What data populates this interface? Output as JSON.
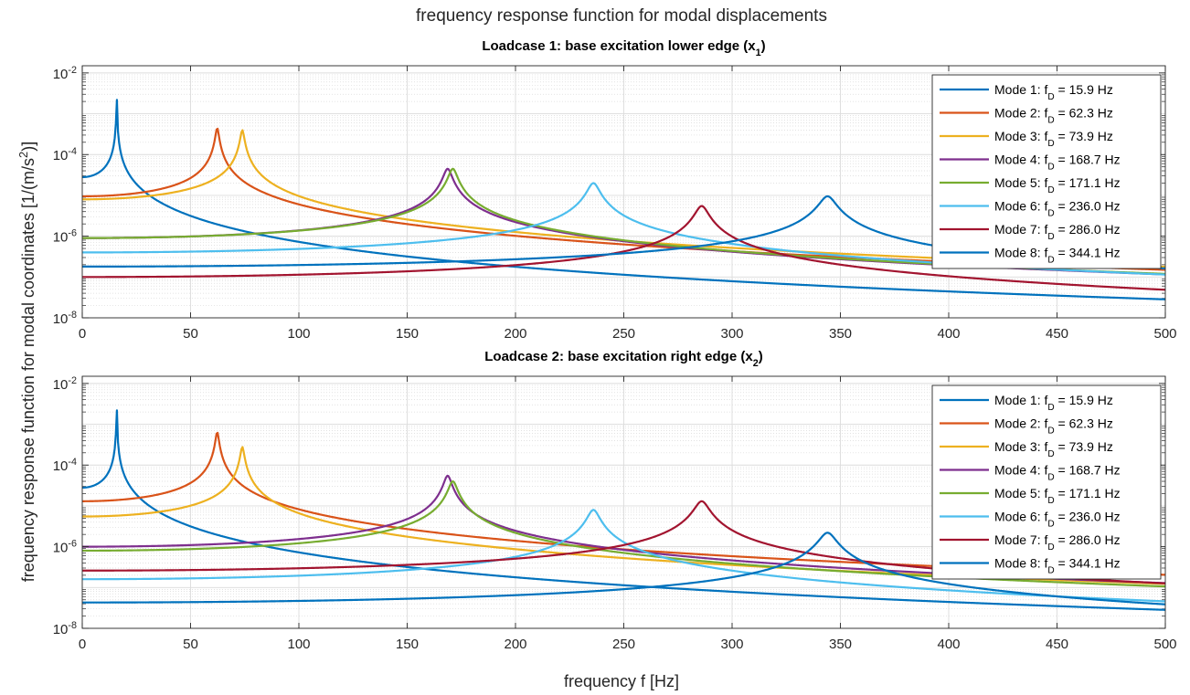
{
  "figure": {
    "suptitle": "frequency response function for modal displacements",
    "ylabel": "frequency response function for modal coordinates [1/(m/s²)]",
    "xlabel": "frequency f [Hz]"
  },
  "legend_labels": [
    "Mode 1: f_D = 15.9 Hz",
    "Mode 2: f_D = 62.3 Hz",
    "Mode 3: f_D = 73.9 Hz",
    "Mode 4: f_D = 168.7 Hz",
    "Mode 5: f_D = 171.1 Hz",
    "Mode 6: f_D = 236.0 Hz",
    "Mode 7: f_D = 286.0 Hz",
    "Mode 8: f_D = 344.1 Hz"
  ],
  "chart_data": [
    {
      "type": "line",
      "title": "Loadcase 1: base excitation lower edge (x_1)",
      "x_scale": "linear",
      "y_scale": "log",
      "xlim": [
        0,
        500
      ],
      "ylim": [
        1e-08,
        0.015
      ],
      "xticks": [
        0,
        50,
        100,
        150,
        200,
        250,
        300,
        350,
        400,
        450,
        500
      ],
      "yticks": [
        "10^-8",
        "10^-6",
        "10^-4",
        "10^-2"
      ],
      "grid": true,
      "legend_position": "top-right",
      "series": [
        {
          "name": "Mode 1: f_D = 15.9 Hz",
          "color": "#0072BD",
          "f0": 15.9,
          "static": 2.8e-05,
          "peak": 0.015
        },
        {
          "name": "Mode 2: f_D = 62.3 Hz",
          "color": "#D95319",
          "f0": 62.3,
          "static": 9.5e-06,
          "peak": 0.00045
        },
        {
          "name": "Mode 3: f_D = 73.9 Hz",
          "color": "#EDB120",
          "f0": 73.9,
          "static": 8e-06,
          "peak": 0.0004
        },
        {
          "name": "Mode 4: f_D = 168.7 Hz",
          "color": "#7E2F8E",
          "f0": 168.7,
          "static": 9e-07,
          "peak": 4.5e-05
        },
        {
          "name": "Mode 5: f_D = 171.1 Hz",
          "color": "#77AC30",
          "f0": 171.1,
          "static": 9e-07,
          "peak": 4.5e-05
        },
        {
          "name": "Mode 6: f_D = 236.0 Hz",
          "color": "#4DBEEE",
          "f0": 236.0,
          "static": 4e-07,
          "peak": 2e-05
        },
        {
          "name": "Mode 7: f_D = 286.0 Hz",
          "color": "#A2142F",
          "f0": 286.0,
          "static": 1e-07,
          "peak": 5.5e-06
        },
        {
          "name": "Mode 8: f_D = 344.1 Hz",
          "color": "#0072BD",
          "f0": 344.1,
          "static": 1.8e-07,
          "peak": 9.5e-06
        }
      ]
    },
    {
      "type": "line",
      "title": "Loadcase 2: base excitation right edge (x_2)",
      "x_scale": "linear",
      "y_scale": "log",
      "xlim": [
        0,
        500
      ],
      "ylim": [
        1e-08,
        0.015
      ],
      "xticks": [
        0,
        50,
        100,
        150,
        200,
        250,
        300,
        350,
        400,
        450,
        500
      ],
      "yticks": [
        "10^-8",
        "10^-6",
        "10^-4",
        "10^-2"
      ],
      "grid": true,
      "legend_position": "top-right",
      "series": [
        {
          "name": "Mode 1: f_D = 15.9 Hz",
          "color": "#0072BD",
          "f0": 15.9,
          "static": 2.8e-05,
          "peak": 0.015
        },
        {
          "name": "Mode 2: f_D = 62.3 Hz",
          "color": "#D95319",
          "f0": 62.3,
          "static": 1.3e-05,
          "peak": 0.00065
        },
        {
          "name": "Mode 3: f_D = 73.9 Hz",
          "color": "#EDB120",
          "f0": 73.9,
          "static": 5.5e-06,
          "peak": 0.00028
        },
        {
          "name": "Mode 4: f_D = 168.7 Hz",
          "color": "#7E2F8E",
          "f0": 168.7,
          "static": 1e-06,
          "peak": 5.5e-05
        },
        {
          "name": "Mode 5: f_D = 171.1 Hz",
          "color": "#77AC30",
          "f0": 171.1,
          "static": 8e-07,
          "peak": 4e-05
        },
        {
          "name": "Mode 6: f_D = 236.0 Hz",
          "color": "#4DBEEE",
          "f0": 236.0,
          "static": 1.6e-07,
          "peak": 8e-06
        },
        {
          "name": "Mode 7: f_D = 286.0 Hz",
          "color": "#A2142F",
          "f0": 286.0,
          "static": 2.6e-07,
          "peak": 1.3e-05
        },
        {
          "name": "Mode 8: f_D = 344.1 Hz",
          "color": "#0072BD",
          "f0": 344.1,
          "static": 4.3e-08,
          "peak": 2.2e-06
        }
      ]
    }
  ]
}
